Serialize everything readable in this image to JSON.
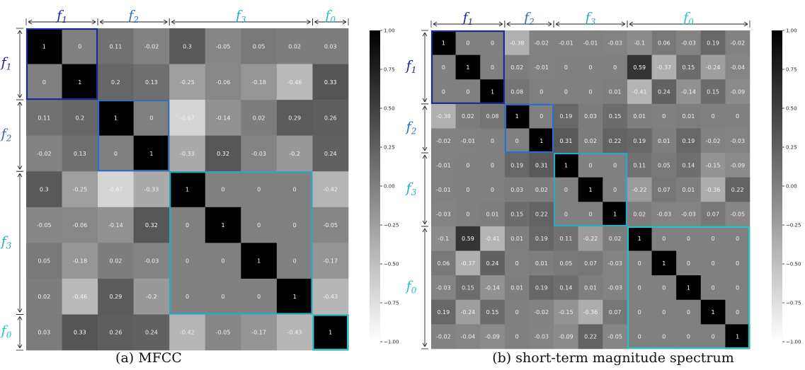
{
  "colors": {
    "f0": "#25c4c4",
    "f1": "#1a2a9a",
    "f2": "#2f6fc1",
    "f3": "#2aa9c6"
  },
  "chart_data": [
    {
      "type": "heatmap",
      "caption": "(a) MFCC",
      "groups": [
        {
          "name": "f",
          "sub": "1",
          "size": 2,
          "color_key": "f1"
        },
        {
          "name": "f",
          "sub": "2",
          "size": 2,
          "color_key": "f2"
        },
        {
          "name": "f",
          "sub": "3",
          "size": 4,
          "color_key": "f3"
        },
        {
          "name": "f",
          "sub": "0",
          "size": 1,
          "color_key": "f0"
        }
      ],
      "values": [
        [
          1,
          0,
          0.11,
          -0.02,
          0.3,
          -0.05,
          0.05,
          0.02,
          0.03
        ],
        [
          0,
          1,
          0.2,
          0.13,
          -0.25,
          -0.06,
          -0.18,
          -0.46,
          0.33
        ],
        [
          0.11,
          0.2,
          1,
          0,
          -0.67,
          -0.14,
          0.02,
          0.29,
          0.26
        ],
        [
          -0.02,
          0.13,
          0,
          1,
          -0.33,
          0.32,
          -0.03,
          -0.2,
          0.24
        ],
        [
          0.3,
          -0.25,
          -0.67,
          -0.33,
          1,
          0,
          0,
          0,
          -0.42
        ],
        [
          -0.05,
          -0.06,
          -0.14,
          0.32,
          0,
          1,
          0,
          0,
          -0.05
        ],
        [
          0.05,
          -0.18,
          0.02,
          -0.03,
          0,
          0,
          1,
          0,
          -0.17
        ],
        [
          0.02,
          -0.46,
          0.29,
          -0.2,
          0,
          0,
          0,
          1,
          -0.43
        ],
        [
          0.03,
          0.33,
          0.26,
          0.24,
          -0.42,
          -0.05,
          -0.17,
          -0.43,
          1
        ]
      ],
      "colorbar": {
        "range": [
          -1.0,
          1.0
        ],
        "ticks": [
          "1.00",
          "0.75",
          "0.50",
          "0.25",
          "0.00",
          "−0.25",
          "−0.50",
          "−0.75",
          "−1.00"
        ]
      }
    },
    {
      "type": "heatmap",
      "caption": "(b) short-term magnitude spectrum",
      "groups": [
        {
          "name": "f",
          "sub": "1",
          "size": 3,
          "color_key": "f1"
        },
        {
          "name": "f",
          "sub": "2",
          "size": 2,
          "color_key": "f2"
        },
        {
          "name": "f",
          "sub": "3",
          "size": 3,
          "color_key": "f3"
        },
        {
          "name": "f",
          "sub": "0",
          "size": 5,
          "color_key": "f0"
        }
      ],
      "values": [
        [
          1,
          0,
          0,
          -0.38,
          -0.02,
          -0.01,
          -0.01,
          -0.03,
          -0.1,
          0.06,
          -0.03,
          0.19,
          -0.02
        ],
        [
          0,
          1,
          0,
          0.02,
          -0.01,
          0,
          0,
          0,
          0.59,
          -0.37,
          0.15,
          -0.24,
          -0.04
        ],
        [
          0,
          0,
          1,
          0.08,
          0,
          0,
          0,
          0.01,
          -0.41,
          0.24,
          -0.14,
          0.15,
          -0.09
        ],
        [
          -0.38,
          0.02,
          0.08,
          1,
          0,
          0.19,
          0.03,
          0.15,
          0.01,
          0,
          0.01,
          0,
          0
        ],
        [
          -0.02,
          -0.01,
          0,
          0,
          1,
          0.31,
          0.02,
          0.22,
          0.19,
          0.01,
          0.19,
          -0.02,
          -0.03
        ],
        [
          -0.01,
          0,
          0,
          0.19,
          0.31,
          1,
          0,
          0,
          0.11,
          0.05,
          0.14,
          -0.15,
          -0.09
        ],
        [
          -0.01,
          0,
          0,
          0.03,
          0.02,
          0,
          1,
          0,
          -0.22,
          0.07,
          0.01,
          -0.36,
          0.22
        ],
        [
          -0.03,
          0,
          0.01,
          0.15,
          0.22,
          0,
          0,
          1,
          0.02,
          -0.03,
          -0.03,
          0.07,
          -0.05
        ],
        [
          -0.1,
          0.59,
          -0.41,
          0.01,
          0.19,
          0.11,
          -0.22,
          0.02,
          1,
          0,
          0,
          0,
          0
        ],
        [
          0.06,
          -0.37,
          0.24,
          0,
          0.01,
          0.05,
          0.07,
          -0.03,
          0,
          1,
          0,
          0,
          0
        ],
        [
          -0.03,
          0.15,
          -0.14,
          0.01,
          0.19,
          0.14,
          0.01,
          -0.03,
          0,
          0,
          1,
          0,
          0
        ],
        [
          0.19,
          -0.24,
          0.15,
          0,
          -0.02,
          -0.15,
          -0.36,
          0.07,
          0,
          0,
          0,
          1,
          0
        ],
        [
          -0.02,
          -0.04,
          -0.09,
          0,
          -0.03,
          -0.09,
          0.22,
          -0.05,
          0,
          0,
          0,
          0,
          1
        ]
      ],
      "colorbar": {
        "range": [
          -1.0,
          1.0
        ],
        "ticks": [
          "1.00",
          "0.75",
          "0.50",
          "0.25",
          "0.00",
          "−0.25",
          "−0.50",
          "−0.75",
          "−1.00"
        ]
      }
    }
  ]
}
